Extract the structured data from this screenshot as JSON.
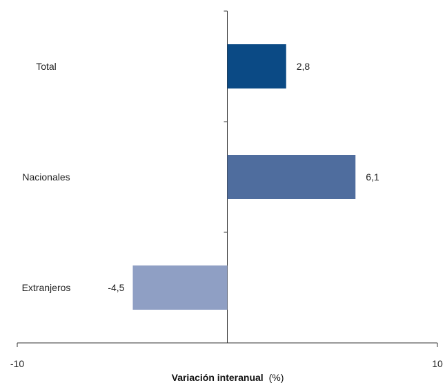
{
  "chart_data": {
    "type": "bar",
    "orientation": "horizontal",
    "categories": [
      "Total",
      "Nacionales",
      "Extranjeros"
    ],
    "values": [
      2.8,
      6.1,
      -4.5
    ],
    "value_labels": [
      "2,8",
      "6,1",
      "-4,5"
    ],
    "bar_colors": [
      "#0b4a85",
      "#4f6d9e",
      "#8f9fc4"
    ],
    "xlim": [
      -10,
      10
    ],
    "x_ticks": [
      -10,
      10
    ],
    "x_tick_labels": [
      "-10",
      "10"
    ],
    "xlabel_main": "Variación interanual",
    "xlabel_unit": "(%)",
    "grid": false,
    "legend": "none"
  }
}
